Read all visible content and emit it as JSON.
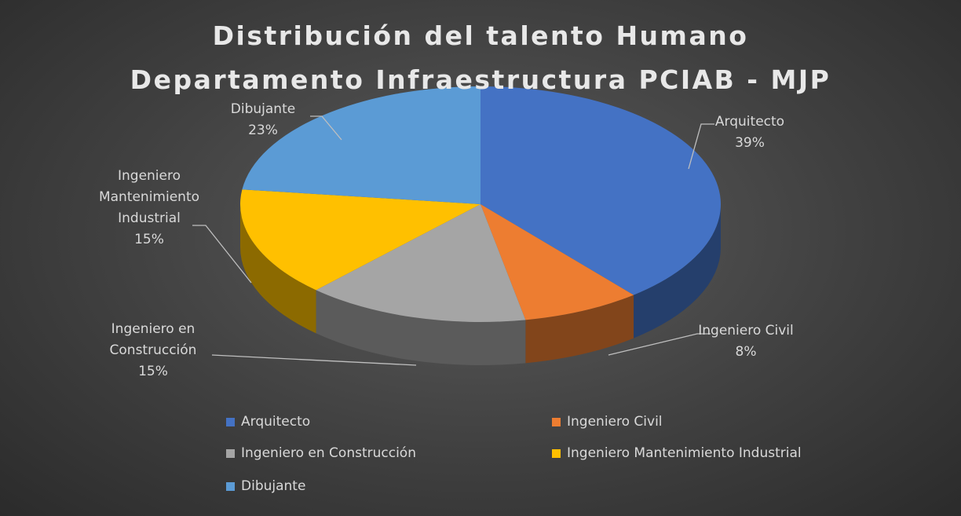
{
  "chart_data": {
    "type": "pie",
    "title": "Distribución del talento Humano",
    "subtitle": "Departamento Infraestructura PCIAB - MJP",
    "categories": [
      "Arquitecto",
      "Ingeniero Civil",
      "Ingeniero en Construcción",
      "Ingeniero Mantenimiento Industrial",
      "Dibujante"
    ],
    "values": [
      39,
      8,
      15,
      15,
      23
    ],
    "value_labels": [
      "39%",
      "8%",
      "15%",
      "15%",
      "23%"
    ],
    "colors": [
      "#4472c4",
      "#ed7d31",
      "#a5a5a5",
      "#ffc000",
      "#5b9bd5"
    ],
    "legend": "bottom"
  }
}
